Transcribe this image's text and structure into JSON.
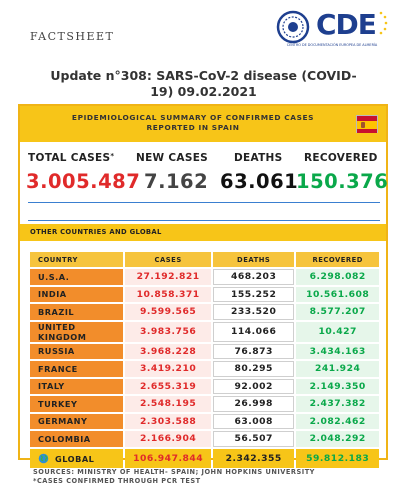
{
  "header": {
    "factsheet": "FACTSHEET",
    "logo_text": "CDE",
    "logo_sub": "CENTRO DE DOCUMENTACIÓN EUROPEA DE ALMERÍA"
  },
  "title_line1": "Update n°308: SARS-CoV-2 disease (COVID-",
  "title_line2": "19) 09.02.2021",
  "summary": {
    "heading_line1": "EPIDEMIOLOGICAL SUMMARY OF CONFIRMED CASES",
    "heading_line2": "REPORTED IN SPAIN",
    "total_cases_label": "TOTAL CASES",
    "total_cases_mark": "*",
    "new_cases_label": "NEW CASES",
    "deaths_label": "DEATHS",
    "recovered_label": "RECOVERED",
    "total_cases": "3.005.487",
    "new_cases": "7.162",
    "deaths": "63.061",
    "recovered": "150.376",
    "accent_colors": {
      "cases": "#e02a2a",
      "deaths": "#111111",
      "recovered": "#0aa84a",
      "banner": "#f7c518"
    }
  },
  "others_heading": "OTHER COUNTRIES AND GLOBAL",
  "table": {
    "headers": [
      "COUNTRY",
      "CASES",
      "DEATHS",
      "RECOVERED"
    ],
    "rows": [
      [
        "U.S.A.",
        "27.192.821",
        "468.203",
        "6.298.082"
      ],
      [
        "INDIA",
        "10.858.371",
        "155.252",
        "10.561.608"
      ],
      [
        "BRAZIL",
        "9.599.565",
        "233.520",
        "8.577.207"
      ],
      [
        "UNITED KINGDOM",
        "3.983.756",
        "114.066",
        "10.427"
      ],
      [
        "RUSSIA",
        "3.968.228",
        "76.873",
        "3.434.163"
      ],
      [
        "FRANCE",
        "3.419.210",
        "80.295",
        "241.924"
      ],
      [
        "ITALY",
        "2.655.319",
        "92.002",
        "2.149.350"
      ],
      [
        "TURKEY",
        "2.548.195",
        "26.998",
        "2.437.382"
      ],
      [
        "GERMANY",
        "2.303.588",
        "63.008",
        "2.082.462"
      ],
      [
        "COLOMBIA",
        "2.166.904",
        "56.507",
        "2.048.292"
      ]
    ],
    "global": [
      "GLOBAL",
      "106.947.844",
      "2.342.355",
      "59.812.183"
    ]
  },
  "sources_line1": "SOURCES: MINISTRY OF HEALTH- SPAIN; JOHN HOPKINS UNIVERSITY",
  "sources_line2": "*CASES CONFIRMED THROUGH PCR TEST",
  "icons": {
    "flag": "spain-flag-icon",
    "globe": "globe-icon",
    "logo": "cde-logo-icon"
  }
}
